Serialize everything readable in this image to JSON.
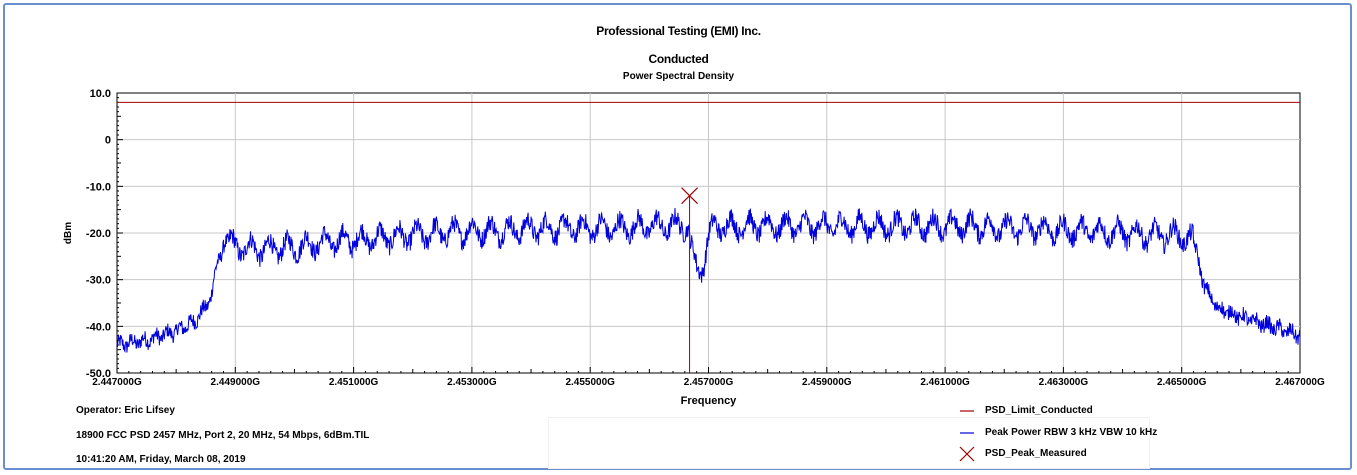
{
  "header": {
    "title": "Professional Testing (EMI) Inc.",
    "subtitle": "Conducted",
    "subtitle2": "Power Spectral Density"
  },
  "footer": {
    "operator": "Operator: Eric Lifsey",
    "file": "18900 FCC PSD 2457 MHz, Port 2, 20 MHz, 54 Mbps, 6dBm.TIL",
    "timestamp": "10:41:20 AM, Friday, March 08, 2019"
  },
  "chart_data": {
    "type": "line",
    "title": "Power Spectral Density",
    "xlabel": "Frequency",
    "ylabel": "dBm",
    "xlim": [
      2.447,
      2.467
    ],
    "ylim": [
      -50,
      10
    ],
    "grid": true,
    "x_ticks": [
      "2.447000G",
      "2.449000G",
      "2.451000G",
      "2.453000G",
      "2.455000G",
      "2.457000G",
      "2.459000G",
      "2.461000G",
      "2.463000G",
      "2.465000G",
      "2.467000G"
    ],
    "y_ticks": [
      "10.0",
      "0",
      "-10.0",
      "-20.0",
      "-30.0",
      "-40.0",
      "-50.0"
    ],
    "legend_position": "bottom-right",
    "series": [
      {
        "name": "PSD_Limit_Conducted",
        "color": "#a00000",
        "kind": "hline",
        "y": 8
      },
      {
        "name": "Peak Power RBW 3 kHz  VBW 10 kHz",
        "color": "#0000dd",
        "kind": "trace",
        "x": [
          2.447,
          2.4475,
          2.448,
          2.4483,
          2.4485,
          2.4486,
          2.4487,
          2.4488,
          2.4489,
          2.449,
          2.4495,
          2.45,
          2.4505,
          2.451,
          2.4515,
          2.452,
          2.4525,
          2.453,
          2.4535,
          2.454,
          2.4545,
          2.455,
          2.4555,
          2.456,
          2.4565,
          2.45665,
          2.4567,
          2.4568,
          2.4569,
          2.457,
          2.4571,
          2.4575,
          2.458,
          2.4585,
          2.459,
          2.4595,
          2.46,
          2.4605,
          2.461,
          2.4615,
          2.462,
          2.4625,
          2.463,
          2.4635,
          2.464,
          2.4645,
          2.465,
          2.4652,
          2.4653,
          2.4654,
          2.4655,
          2.4656,
          2.466,
          2.4665,
          2.467
        ],
        "y": [
          -44,
          -43,
          -41,
          -39,
          -36,
          -33,
          -26,
          -23,
          -22,
          -23,
          -23.5,
          -23,
          -22,
          -21.5,
          -21,
          -20.5,
          -20,
          -19.5,
          -19.5,
          -19,
          -19,
          -19,
          -19,
          -18.5,
          -18.5,
          -18,
          -23,
          -28,
          -27,
          -21,
          -18.5,
          -18.5,
          -18.5,
          -18.5,
          -18.5,
          -18.5,
          -18.5,
          -18.5,
          -18.5,
          -18.5,
          -19,
          -19,
          -19.5,
          -19.5,
          -20,
          -20.5,
          -20.5,
          -22,
          -27,
          -32,
          -34,
          -36,
          -38,
          -40,
          -42
        ]
      },
      {
        "name": "PSD_Peak_Measured",
        "color": "#a00000",
        "kind": "marker",
        "x": 2.45668,
        "y": -12
      }
    ]
  }
}
